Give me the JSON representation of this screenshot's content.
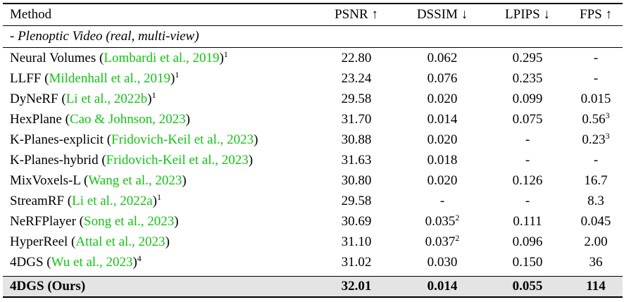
{
  "header": {
    "method": "Method",
    "psnr": "PSNR ↑",
    "dssim": "DSSIM ↓",
    "lpips": "LPIPS ↓",
    "fps": "FPS ↑"
  },
  "section_label": "- Plenoptic Video (real, multi-view)",
  "rows": [
    {
      "name": "Neural Volumes (",
      "cite": "Lombardi et al., 2019",
      "close": ")",
      "sup": "1",
      "psnr": "22.80",
      "dssim": "0.062",
      "dssim_sup": "",
      "lpips": "0.295",
      "fps": "-",
      "fps_sup": ""
    },
    {
      "name": "LLFF (",
      "cite": "Mildenhall et al., 2019",
      "close": ")",
      "sup": "1",
      "psnr": "23.24",
      "dssim": "0.076",
      "dssim_sup": "",
      "lpips": "0.235",
      "fps": "-",
      "fps_sup": ""
    },
    {
      "name": "DyNeRF (",
      "cite": "Li et al., 2022b",
      "close": ")",
      "sup": "1",
      "psnr": "29.58",
      "dssim": "0.020",
      "dssim_sup": "",
      "lpips": "0.099",
      "fps": "0.015",
      "fps_sup": ""
    },
    {
      "name": "HexPlane (",
      "cite": "Cao & Johnson, 2023",
      "close": ")",
      "sup": "",
      "psnr": "31.70",
      "dssim": "0.014",
      "dssim_sup": "",
      "lpips": "0.075",
      "fps": "0.56",
      "fps_sup": "3"
    },
    {
      "name": "K-Planes-explicit (",
      "cite": "Fridovich-Keil et al., 2023",
      "close": ")",
      "sup": "",
      "psnr": "30.88",
      "dssim": "0.020",
      "dssim_sup": "",
      "lpips": "-",
      "fps": "0.23",
      "fps_sup": "3"
    },
    {
      "name": "K-Planes-hybrid (",
      "cite": "Fridovich-Keil et al., 2023",
      "close": ")",
      "sup": "",
      "psnr": "31.63",
      "dssim": "0.018",
      "dssim_sup": "",
      "lpips": "-",
      "fps": "-",
      "fps_sup": ""
    },
    {
      "name": "MixVoxels-L (",
      "cite": "Wang et al., 2023",
      "close": ")",
      "sup": "",
      "psnr": "30.80",
      "dssim": "0.020",
      "dssim_sup": "",
      "lpips": "0.126",
      "fps": "16.7",
      "fps_sup": ""
    },
    {
      "name": "StreamRF (",
      "cite": "Li et al., 2022a",
      "close": ")",
      "sup": "1",
      "psnr": "29.58",
      "dssim": "-",
      "dssim_sup": "",
      "lpips": "-",
      "fps": "8.3",
      "fps_sup": ""
    },
    {
      "name": "NeRFPlayer (",
      "cite": "Song et al., 2023",
      "close": ")",
      "sup": "",
      "psnr": "30.69",
      "dssim": "0.035",
      "dssim_sup": "2",
      "lpips": "0.111",
      "fps": "0.045",
      "fps_sup": ""
    },
    {
      "name": "HyperReel (",
      "cite": "Attal et al., 2023",
      "close": ")",
      "sup": "",
      "psnr": "31.10",
      "dssim": "0.037",
      "dssim_sup": "2",
      "lpips": "0.096",
      "fps": "2.00",
      "fps_sup": ""
    },
    {
      "name": "4DGS (",
      "cite": "Wu et al., 2023",
      "close": ")",
      "sup": "4",
      "psnr": "31.02",
      "dssim": "0.030",
      "dssim_sup": "",
      "lpips": "0.150",
      "fps": "36",
      "fps_sup": ""
    }
  ],
  "ours": {
    "name": "4DGS (Ours)",
    "psnr": "32.01",
    "dssim": "0.014",
    "lpips": "0.055",
    "fps": "114"
  }
}
